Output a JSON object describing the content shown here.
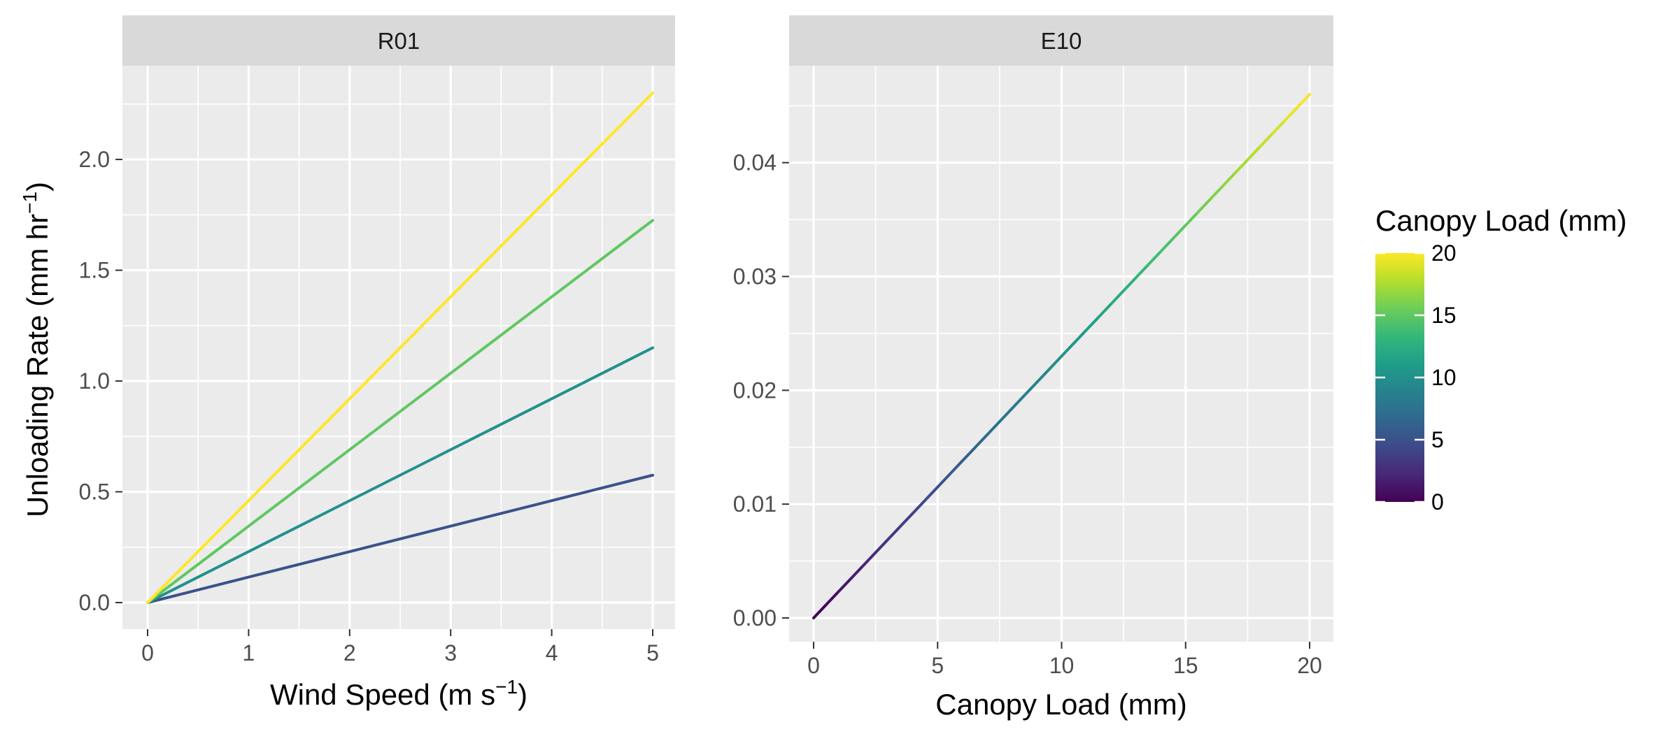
{
  "colors": {
    "panel_bg": "#EBEBEB",
    "strip_bg": "#D9D9D9",
    "grid": "#FFFFFF",
    "tick_color": "#333333",
    "viridis": [
      "#440154",
      "#482878",
      "#3E4A89",
      "#31688E",
      "#26828E",
      "#1F9E89",
      "#35B779",
      "#6DCD59",
      "#B4DE2C",
      "#FDE725"
    ]
  },
  "ylabel_parts": {
    "main": "Unloading Rate (mm hr",
    "sup": "−1",
    "close": ")"
  },
  "chart_data": [
    {
      "type": "line",
      "panel": "R01",
      "xlabel_parts": {
        "main": "Wind Speed (m s",
        "sup": "−1",
        "close": ")"
      },
      "xlim": [
        0,
        5
      ],
      "ylim": [
        0,
        2.3
      ],
      "x_ticks": [
        0,
        1,
        2,
        3,
        4,
        5
      ],
      "y_ticks": [
        0.0,
        0.5,
        1.0,
        1.5,
        2.0
      ],
      "x_tick_labels": [
        "0",
        "1",
        "2",
        "3",
        "4",
        "5"
      ],
      "y_tick_labels": [
        "0.0",
        "0.5",
        "1.0",
        "1.5",
        "2.0"
      ],
      "grid": true,
      "series": [
        {
          "color_value": 5,
          "x": [
            0,
            5
          ],
          "y": [
            0,
            0.575
          ]
        },
        {
          "color_value": 10,
          "x": [
            0,
            5
          ],
          "y": [
            0,
            1.15
          ]
        },
        {
          "color_value": 15,
          "x": [
            0,
            5
          ],
          "y": [
            0,
            1.725
          ]
        },
        {
          "color_value": 20,
          "x": [
            0,
            5
          ],
          "y": [
            0,
            2.3
          ]
        }
      ]
    },
    {
      "type": "line",
      "panel": "E10",
      "xlabel": "Canopy Load (mm)",
      "xlim": [
        0,
        20
      ],
      "ylim": [
        0,
        0.046
      ],
      "x_ticks": [
        0,
        5,
        10,
        15,
        20
      ],
      "y_ticks": [
        0.0,
        0.01,
        0.02,
        0.03,
        0.04
      ],
      "x_tick_labels": [
        "0",
        "5",
        "10",
        "15",
        "20"
      ],
      "y_tick_labels": [
        "0.00",
        "0.01",
        "0.02",
        "0.03",
        "0.04"
      ],
      "grid": true,
      "color_by_x": true,
      "series": [
        {
          "x": [
            0,
            20
          ],
          "y": [
            0,
            0.046
          ]
        }
      ]
    }
  ],
  "legend": {
    "title": "Canopy Load (mm)",
    "type": "colorbar",
    "placement": "right",
    "range": [
      0,
      20
    ],
    "ticks": [
      0,
      5,
      10,
      15,
      20
    ],
    "tick_labels": [
      "0",
      "5",
      "10",
      "15",
      "20"
    ]
  }
}
